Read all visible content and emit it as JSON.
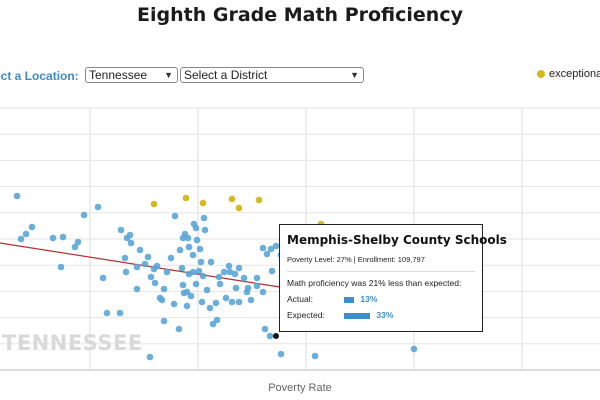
{
  "header": {
    "title": "Eighth Grade Math Proficiency"
  },
  "controls": {
    "location_label": "ect a Location:",
    "state_select": {
      "value": "Tennessee"
    },
    "district_select": {
      "value": "Select a District"
    }
  },
  "legend": {
    "label": "exceptional",
    "color": "#d8b820"
  },
  "watermark": "TENNESSEE",
  "chart_data": {
    "type": "scatter",
    "xlabel": "Poverty Rate",
    "grid": true,
    "trendline": {
      "color": "#b03030"
    },
    "colors": {
      "normal": "#5aa5d8",
      "exceptional": "#d8b820",
      "selected": "#111111"
    },
    "series": [
      {
        "name": "exceptional",
        "points": [
          [
            154,
            204
          ],
          [
            186,
            198
          ],
          [
            203,
            203
          ],
          [
            232,
            199
          ],
          [
            239,
            208
          ],
          [
            259,
            200
          ],
          [
            321,
            224
          ]
        ]
      },
      {
        "name": "",
        "points": [
          [
            17,
            196
          ],
          [
            32,
            227
          ],
          [
            26,
            234
          ],
          [
            21,
            239
          ],
          [
            53,
            238
          ],
          [
            63,
            237
          ],
          [
            78,
            242
          ],
          [
            61,
            267
          ],
          [
            75,
            247
          ],
          [
            98,
            207
          ],
          [
            84,
            215
          ],
          [
            103,
            278
          ],
          [
            107,
            313
          ],
          [
            120,
            313
          ],
          [
            121,
            230
          ],
          [
            127,
            238
          ],
          [
            130,
            235
          ],
          [
            131,
            243
          ],
          [
            125,
            258
          ],
          [
            126,
            272
          ],
          [
            137,
            267
          ],
          [
            137,
            289
          ],
          [
            140,
            250
          ],
          [
            145,
            264
          ],
          [
            148,
            257
          ],
          [
            151,
            277
          ],
          [
            154,
            269
          ],
          [
            157,
            266
          ],
          [
            155,
            283
          ],
          [
            160,
            298
          ],
          [
            162,
            300
          ],
          [
            164,
            321
          ],
          [
            164,
            289
          ],
          [
            167,
            272
          ],
          [
            171,
            258
          ],
          [
            175,
            216
          ],
          [
            180,
            250
          ],
          [
            183,
            238
          ],
          [
            182,
            268
          ],
          [
            185,
            234
          ],
          [
            188,
            238
          ],
          [
            189,
            247
          ],
          [
            194,
            224
          ],
          [
            196,
            228
          ],
          [
            193,
            255
          ],
          [
            197,
            240
          ],
          [
            204,
            218
          ],
          [
            205,
            230
          ],
          [
            200,
            249
          ],
          [
            201,
            262
          ],
          [
            189,
            274
          ],
          [
            193,
            272
          ],
          [
            199,
            271
          ],
          [
            203,
            276
          ],
          [
            211,
            262
          ],
          [
            207,
            290
          ],
          [
            202,
            302
          ],
          [
            191,
            296
          ],
          [
            184,
            293
          ],
          [
            187,
            306
          ],
          [
            174,
            304
          ],
          [
            179,
            329
          ],
          [
            210,
            308
          ],
          [
            217,
            320
          ],
          [
            213,
            324
          ],
          [
            220,
            284
          ],
          [
            224,
            272
          ],
          [
            219,
            277
          ],
          [
            229,
            266
          ],
          [
            230,
            272
          ],
          [
            235,
            274
          ],
          [
            239,
            268
          ],
          [
            236,
            288
          ],
          [
            239,
            302
          ],
          [
            244,
            278
          ],
          [
            248,
            288
          ],
          [
            247,
            292
          ],
          [
            257,
            278
          ],
          [
            263,
            248
          ],
          [
            267,
            254
          ],
          [
            271,
            249
          ],
          [
            272,
            271
          ],
          [
            276,
            246
          ],
          [
            281,
            255
          ],
          [
            265,
            329
          ],
          [
            270,
            336
          ],
          [
            281,
            354
          ],
          [
            315,
            356
          ],
          [
            414,
            349
          ],
          [
            150,
            357
          ],
          [
            183,
            285
          ],
          [
            187,
            292
          ],
          [
            196,
            284
          ],
          [
            216,
            303
          ],
          [
            226,
            298
          ],
          [
            232,
            302
          ],
          [
            251,
            300
          ],
          [
            257,
            286
          ],
          [
            263,
            292
          ]
        ]
      },
      {
        "name": "Memphis-Shelby County Schools",
        "points": [
          [
            276,
            336
          ]
        ]
      }
    ]
  },
  "tooltip": {
    "district": "Memphis-Shelby County Schools",
    "meta": "Poverty Level: 27% | Enrollment: 109,797",
    "message": "Math proficiency was 21% less than expected:",
    "actual_label": "Actual:",
    "actual_value": "13%",
    "actual_fraction": 0.13,
    "expected_label": "Expected:",
    "expected_value": "33%",
    "expected_fraction": 0.33
  }
}
